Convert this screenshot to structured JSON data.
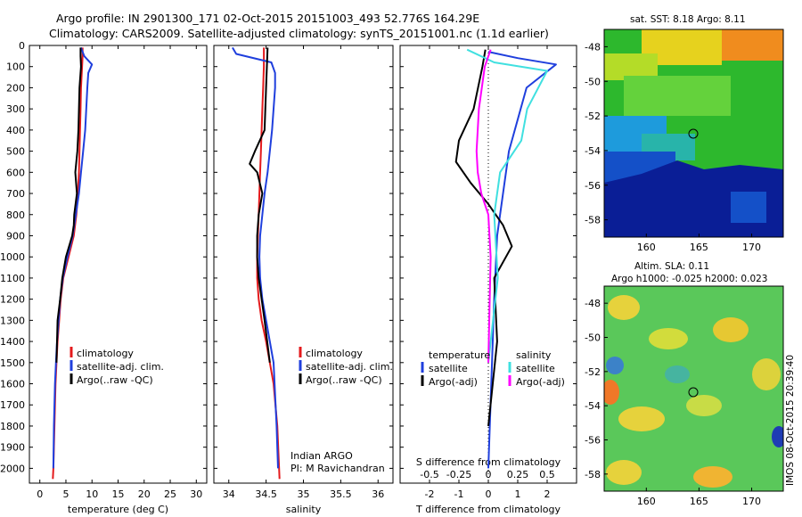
{
  "title_line1": "Argo profile: IN 2901300_171 02-Oct-2015 20151003_493 52.776S 164.29E",
  "title_line2": "Climatology: CARS2009. Satellite-adjusted climatology: synTS_20151001.nc (1.1d earlier)",
  "credit": "IMOS 08-Oct-2015 20:39:40",
  "chart_data": [
    {
      "type": "line",
      "id": "temperature",
      "xlabel": "temperature (deg C)",
      "ylabel": "",
      "xlim": [
        -2,
        32
      ],
      "ylim": [
        2070,
        0
      ],
      "xticks": [
        0,
        5,
        10,
        15,
        20,
        25,
        30
      ],
      "yticks": [
        0,
        100,
        200,
        300,
        400,
        500,
        600,
        700,
        800,
        900,
        1000,
        1100,
        1200,
        1300,
        1400,
        1500,
        1600,
        1700,
        1800,
        1900,
        2000
      ],
      "legend": [
        "climatology",
        "satellite-adj. clim.",
        "Argo(..raw -QC)"
      ],
      "legend_position": "lower-right",
      "series": [
        {
          "name": "climatology",
          "color": "#e41a1c",
          "x": [
            8.2,
            8.2,
            8.1,
            8.0,
            7.9,
            7.8,
            7.7,
            7.6,
            7.5,
            7.3,
            7.0,
            6.5,
            5.5,
            4.5,
            4.0,
            3.7,
            3.4,
            3.2,
            3.0,
            2.8,
            2.6,
            2.5
          ],
          "y": [
            10,
            50,
            100,
            150,
            200,
            300,
            400,
            500,
            600,
            700,
            800,
            900,
            1000,
            1100,
            1200,
            1300,
            1400,
            1500,
            1600,
            1800,
            2000,
            2050
          ]
        },
        {
          "name": "satellite-adj. clim.",
          "color": "#1f3fdd",
          "x": [
            7.9,
            8.5,
            10.0,
            9.3,
            9.1,
            8.9,
            8.7,
            8.3,
            7.9,
            7.5,
            6.9,
            6.3,
            5.3,
            4.4,
            3.9,
            3.6,
            3.3,
            3.1,
            2.9,
            2.7,
            2.6
          ],
          "y": [
            10,
            50,
            90,
            130,
            200,
            300,
            400,
            500,
            600,
            700,
            800,
            900,
            1000,
            1100,
            1200,
            1300,
            1400,
            1500,
            1600,
            1800,
            2000
          ]
        },
        {
          "name": "Argo(..raw -QC)",
          "color": "#000000",
          "x": [
            7.8,
            7.8,
            7.9,
            7.6,
            7.5,
            7.4,
            7.2,
            6.8,
            7.1,
            6.6,
            6.5,
            6.2,
            5.0,
            4.3,
            3.9,
            3.4,
            3.3,
            3.2
          ],
          "y": [
            10,
            50,
            100,
            200,
            300,
            400,
            500,
            600,
            700,
            800,
            850,
            900,
            1000,
            1100,
            1200,
            1300,
            1400,
            1500
          ]
        }
      ]
    },
    {
      "type": "line",
      "id": "salinity",
      "xlabel": "salinity",
      "ylabel": "",
      "xlim": [
        33.8,
        36.2
      ],
      "ylim": [
        2070,
        0
      ],
      "xticks": [
        34,
        34.5,
        35,
        35.5,
        36
      ],
      "legend": [
        "climatology",
        "satellite-adj. clim.",
        "Argo(..raw -QC)"
      ],
      "legend_position": "lower-right",
      "annotations": [
        "Indian ARGO",
        "PI: M Ravichandran"
      ],
      "series": [
        {
          "name": "climatology",
          "color": "#e41a1c",
          "x": [
            34.47,
            34.47,
            34.46,
            34.45,
            34.44,
            34.43,
            34.42,
            34.41,
            34.4,
            34.39,
            34.38,
            34.38,
            34.4,
            34.44,
            34.5,
            34.55,
            34.6,
            34.65,
            34.68
          ],
          "y": [
            10,
            100,
            200,
            300,
            400,
            500,
            600,
            700,
            800,
            900,
            1000,
            1100,
            1200,
            1300,
            1400,
            1500,
            1600,
            1800,
            2050
          ]
        },
        {
          "name": "satellite-adj. clim.",
          "color": "#1f3fdd",
          "x": [
            34.05,
            34.1,
            34.57,
            34.62,
            34.62,
            34.6,
            34.58,
            34.55,
            34.52,
            34.48,
            34.45,
            34.42,
            34.41,
            34.42,
            34.45,
            34.5,
            34.55,
            34.6,
            34.64,
            34.66
          ],
          "y": [
            10,
            40,
            80,
            130,
            200,
            300,
            400,
            500,
            600,
            700,
            800,
            900,
            1000,
            1100,
            1200,
            1300,
            1400,
            1500,
            1800,
            2000
          ]
        },
        {
          "name": "Argo(..raw -QC)",
          "color": "#000000",
          "x": [
            34.52,
            34.51,
            34.5,
            34.48,
            34.35,
            34.28,
            34.38,
            34.45,
            34.4,
            34.38,
            34.38,
            34.4,
            34.44,
            34.48,
            34.55
          ],
          "y": [
            10,
            100,
            200,
            400,
            500,
            560,
            600,
            700,
            800,
            900,
            1000,
            1100,
            1200,
            1300,
            1500
          ]
        }
      ]
    },
    {
      "type": "line",
      "id": "difference",
      "xlabel": "T difference from climatology",
      "x2label": "S difference from climatology",
      "ylabel": "",
      "xlim": [
        -3.0,
        3.0
      ],
      "ylim": [
        2070,
        0
      ],
      "xticks": [
        -2,
        -1,
        0,
        1,
        2
      ],
      "x2ticks": [
        -0.5,
        -0.25,
        0,
        0.25,
        0.5
      ],
      "legend": [
        "temperature",
        "satellite",
        "Argo(-adj)",
        "salinity",
        "satellite",
        "Argo(-adj)"
      ],
      "legend_position": "lower",
      "series": [
        {
          "name": "temperature satellite",
          "color": "#1f3fdd",
          "x": [
            0.0,
            1.0,
            2.3,
            1.3,
            0.7,
            0.5,
            0.3,
            0.2,
            0.1,
            0.0
          ],
          "y": [
            30,
            60,
            90,
            200,
            500,
            700,
            900,
            1200,
            1600,
            2000
          ]
        },
        {
          "name": "temperature Argo(-adj)",
          "color": "#000000",
          "x": [
            -0.1,
            -0.2,
            -0.5,
            -1.0,
            -1.1,
            -0.6,
            0.0,
            0.5,
            0.8,
            0.2,
            0.3,
            0.0
          ],
          "y": [
            20,
            100,
            300,
            450,
            550,
            650,
            750,
            850,
            950,
            1100,
            1400,
            1800
          ]
        },
        {
          "name": "salinity satellite",
          "color": "#40e0e0",
          "x": [
            -0.18,
            0.05,
            0.5,
            0.33,
            0.28,
            0.1,
            0.05,
            0.08,
            0.0
          ],
          "y": [
            20,
            80,
            120,
            300,
            450,
            600,
            800,
            1100,
            1500
          ]
        },
        {
          "name": "salinity Argo(-adj)",
          "color": "#ff00ff",
          "x": [
            0.02,
            -0.03,
            -0.08,
            -0.1,
            -0.09,
            -0.06,
            0.0,
            0.02,
            0.0
          ],
          "y": [
            20,
            100,
            300,
            500,
            600,
            700,
            800,
            1000,
            1500
          ]
        }
      ]
    },
    {
      "type": "heatmap",
      "id": "sst-map",
      "title": "sat. SST: 8.18 Argo: 8.11",
      "xlim": [
        156,
        173
      ],
      "ylim": [
        -59,
        -47
      ],
      "xticks": [
        160,
        165,
        170
      ],
      "yticks": [
        -48,
        -50,
        -52,
        -54,
        -56,
        -58
      ],
      "marker": {
        "lon": 164.29,
        "lat": -52.776
      }
    },
    {
      "type": "heatmap",
      "id": "sla-map",
      "title": "Altim. SLA: 0.11",
      "subtitle": "Argo h1000: -0.025 h2000: 0.023",
      "xlim": [
        156,
        173
      ],
      "ylim": [
        -59,
        -47
      ],
      "xticks": [
        160,
        165,
        170
      ],
      "yticks": [
        -48,
        -50,
        -52,
        -54,
        -56,
        -58
      ],
      "marker": {
        "lon": 164.29,
        "lat": -52.776
      }
    }
  ]
}
